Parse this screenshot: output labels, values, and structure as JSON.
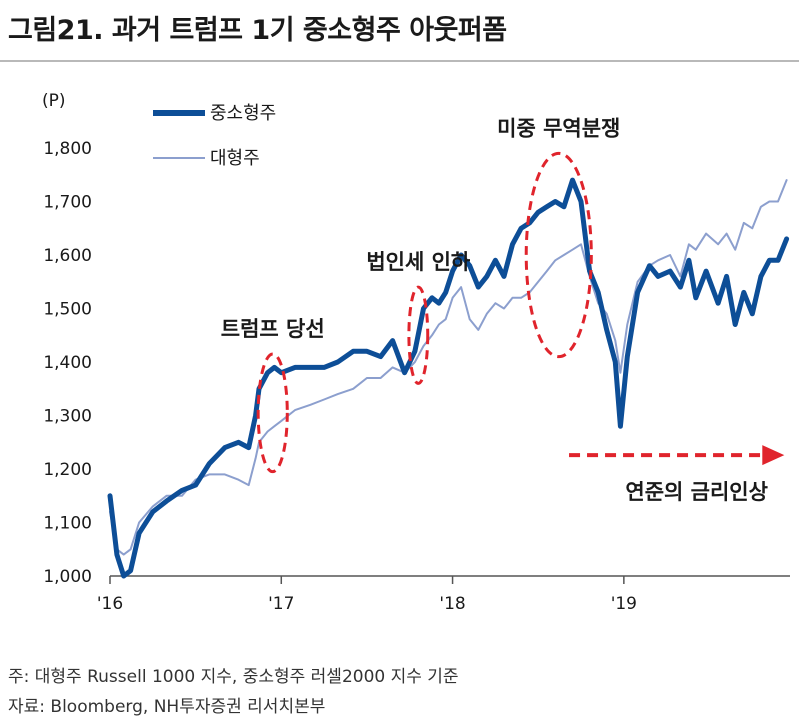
{
  "figure": {
    "title": "그림21. 과거 트럼프 1기 중소형주 아웃퍼폼",
    "note": "주: 대형주 Russell 1000 지수, 중소형주 러셀2000 지수 기준",
    "source": "자료: Bloomberg, NH투자증권 리서치본부"
  },
  "colors": {
    "small_cap": "#0d4e97",
    "large_cap": "#8c9fce",
    "annotation": "#e0242c",
    "rule": "#b9b9b9"
  },
  "chart_data": {
    "type": "line",
    "unit_label": "(P)",
    "ylim": [
      1000,
      1800
    ],
    "yticks": [
      1000,
      1100,
      1200,
      1300,
      1400,
      1500,
      1600,
      1700,
      1800
    ],
    "ytick_labels": [
      "1,000",
      "1,100",
      "1,200",
      "1,300",
      "1,400",
      "1,500",
      "1,600",
      "1,700",
      "1,800"
    ],
    "xlim": [
      2016.0,
      2019.97
    ],
    "xticks": [
      2016,
      2017,
      2018,
      2019
    ],
    "xtick_labels": [
      "'16",
      "'17",
      "'18",
      "'19"
    ],
    "grid": false,
    "legend_position": "top-left",
    "series": [
      {
        "name": "중소형주",
        "x": [
          2016.0,
          2016.04,
          2016.08,
          2016.12,
          2016.17,
          2016.25,
          2016.33,
          2016.42,
          2016.5,
          2016.58,
          2016.67,
          2016.75,
          2016.81,
          2016.85,
          2016.87,
          2016.92,
          2016.96,
          2017.0,
          2017.08,
          2017.17,
          2017.25,
          2017.33,
          2017.42,
          2017.5,
          2017.58,
          2017.65,
          2017.72,
          2017.78,
          2017.83,
          2017.88,
          2017.92,
          2017.96,
          2018.0,
          2018.05,
          2018.1,
          2018.15,
          2018.2,
          2018.25,
          2018.3,
          2018.35,
          2018.4,
          2018.45,
          2018.5,
          2018.55,
          2018.6,
          2018.65,
          2018.7,
          2018.75,
          2018.8,
          2018.85,
          2018.9,
          2018.95,
          2018.98,
          2019.02,
          2019.08,
          2019.15,
          2019.2,
          2019.27,
          2019.33,
          2019.38,
          2019.42,
          2019.48,
          2019.55,
          2019.6,
          2019.65,
          2019.7,
          2019.75,
          2019.8,
          2019.85,
          2019.9,
          2019.95
        ],
        "y": [
          1150,
          1040,
          1000,
          1010,
          1080,
          1120,
          1140,
          1160,
          1170,
          1210,
          1240,
          1250,
          1240,
          1300,
          1350,
          1380,
          1390,
          1380,
          1390,
          1390,
          1390,
          1400,
          1420,
          1420,
          1410,
          1440,
          1380,
          1420,
          1500,
          1520,
          1510,
          1530,
          1570,
          1600,
          1580,
          1540,
          1560,
          1590,
          1560,
          1620,
          1650,
          1660,
          1680,
          1690,
          1700,
          1690,
          1740,
          1700,
          1570,
          1530,
          1460,
          1400,
          1280,
          1410,
          1530,
          1580,
          1560,
          1570,
          1540,
          1590,
          1520,
          1570,
          1510,
          1560,
          1470,
          1530,
          1490,
          1560,
          1590,
          1590,
          1630
        ]
      },
      {
        "name": "대형주",
        "x": [
          2016.0,
          2016.04,
          2016.08,
          2016.12,
          2016.17,
          2016.25,
          2016.33,
          2016.42,
          2016.5,
          2016.58,
          2016.67,
          2016.75,
          2016.81,
          2016.85,
          2016.87,
          2016.92,
          2016.96,
          2017.0,
          2017.08,
          2017.17,
          2017.25,
          2017.33,
          2017.42,
          2017.5,
          2017.58,
          2017.65,
          2017.72,
          2017.78,
          2017.83,
          2017.88,
          2017.92,
          2017.96,
          2018.0,
          2018.05,
          2018.1,
          2018.15,
          2018.2,
          2018.25,
          2018.3,
          2018.35,
          2018.4,
          2018.45,
          2018.5,
          2018.55,
          2018.6,
          2018.65,
          2018.7,
          2018.75,
          2018.8,
          2018.85,
          2018.9,
          2018.95,
          2018.98,
          2019.02,
          2019.08,
          2019.15,
          2019.2,
          2019.27,
          2019.33,
          2019.38,
          2019.42,
          2019.48,
          2019.55,
          2019.6,
          2019.65,
          2019.7,
          2019.75,
          2019.8,
          2019.85,
          2019.9,
          2019.95
        ],
        "y": [
          1120,
          1050,
          1040,
          1050,
          1100,
          1130,
          1150,
          1150,
          1180,
          1190,
          1190,
          1180,
          1170,
          1220,
          1250,
          1270,
          1280,
          1290,
          1310,
          1320,
          1330,
          1340,
          1350,
          1370,
          1370,
          1390,
          1380,
          1400,
          1430,
          1450,
          1470,
          1480,
          1520,
          1540,
          1480,
          1460,
          1490,
          1510,
          1500,
          1520,
          1520,
          1530,
          1550,
          1570,
          1590,
          1600,
          1610,
          1620,
          1560,
          1510,
          1490,
          1440,
          1380,
          1470,
          1550,
          1580,
          1590,
          1600,
          1560,
          1620,
          1610,
          1640,
          1620,
          1640,
          1610,
          1660,
          1650,
          1690,
          1700,
          1700,
          1740
        ]
      }
    ],
    "annotations": [
      {
        "text": "트럼프 당선",
        "x": 2016.95,
        "y": 1305,
        "rx": 0.085,
        "ry": 110
      },
      {
        "text": "법인세 인하",
        "x": 2017.8,
        "y": 1450,
        "rx": 0.055,
        "ry": 90
      },
      {
        "text": "미중 무역분쟁",
        "x": 2018.62,
        "y": 1600,
        "rx": 0.19,
        "ry": 190
      },
      {
        "text": "연준의 금리인상",
        "arrow_from": 2018.68,
        "arrow_to": 2019.82,
        "arrow_y": 1226
      }
    ]
  }
}
